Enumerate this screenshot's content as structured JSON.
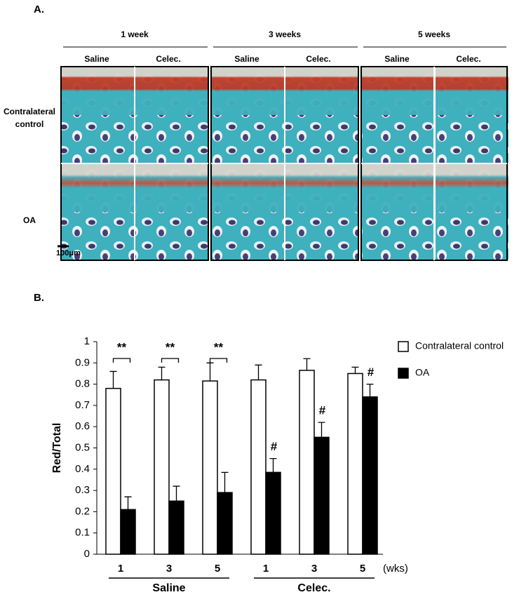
{
  "panel_a": {
    "label": "A.",
    "columns": [
      "1 week",
      "3 weeks",
      "5 weeks"
    ],
    "subcolumns": [
      "Saline",
      "Celec."
    ],
    "rows": [
      "Contralateral control",
      "OA"
    ],
    "scale_bar": "100μm"
  },
  "panel_b_label": "B.",
  "chart_data": {
    "type": "bar",
    "ylabel": "Red/Total",
    "categories": [
      "1",
      "3",
      "5",
      "1",
      "3",
      "5"
    ],
    "x_unit": "(wks)",
    "groups": [
      "Saline",
      "Celec."
    ],
    "series": [
      {
        "name": "Contralateral control",
        "color": "#ffffff",
        "values": [
          0.78,
          0.82,
          0.815,
          0.82,
          0.865,
          0.85
        ],
        "errors": [
          0.08,
          0.06,
          0.085,
          0.07,
          0.055,
          0.03
        ]
      },
      {
        "name": "OA",
        "color": "#000000",
        "values": [
          0.21,
          0.25,
          0.29,
          0.385,
          0.55,
          0.74
        ],
        "errors": [
          0.06,
          0.07,
          0.095,
          0.065,
          0.07,
          0.06
        ]
      }
    ],
    "pair_marks": [
      "**",
      "**",
      "**",
      null,
      null,
      null
    ],
    "oa_marks": [
      null,
      null,
      null,
      "#",
      "#",
      "#"
    ],
    "ylim": [
      0,
      1
    ],
    "yticks": [
      0,
      0.1,
      0.2,
      0.3,
      0.4,
      0.5,
      0.6,
      0.7,
      0.8,
      0.9,
      1
    ],
    "legend": "top-right"
  }
}
